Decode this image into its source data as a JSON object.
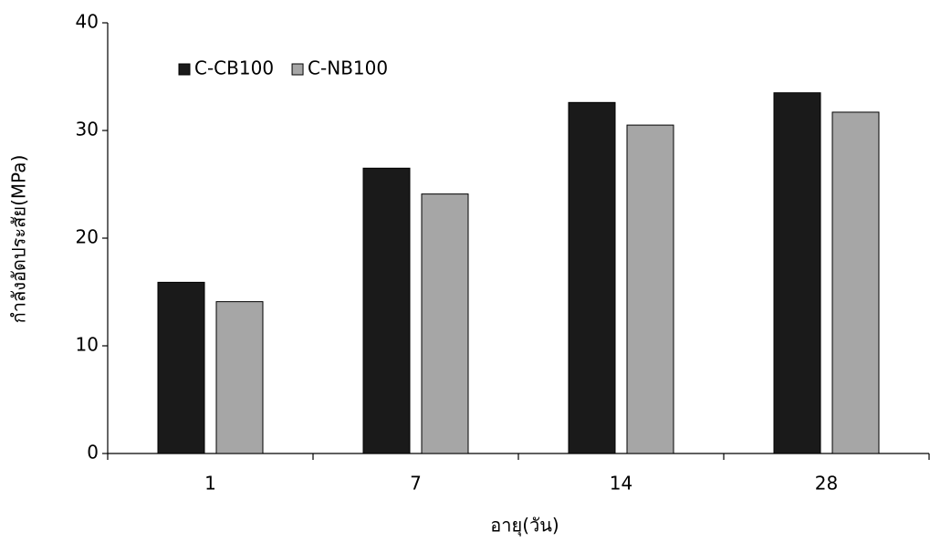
{
  "chart_data": {
    "type": "bar",
    "x_label": "อายุ(วัน)",
    "y_label": "กำลังอัดประสัย(MPa)",
    "categories": [
      "1",
      "7",
      "14",
      "28"
    ],
    "series": [
      {
        "name": "C-CB100",
        "color": "#1a1a1a",
        "values": [
          15.9,
          26.5,
          32.6,
          33.5
        ]
      },
      {
        "name": "C-NB100",
        "color": "#a6a6a6",
        "values": [
          14.1,
          24.1,
          30.5,
          31.7
        ]
      }
    ],
    "ylim": [
      0,
      40
    ],
    "yticks": [
      0,
      10,
      20,
      30,
      40
    ],
    "grid": false,
    "legend": "top-left"
  }
}
